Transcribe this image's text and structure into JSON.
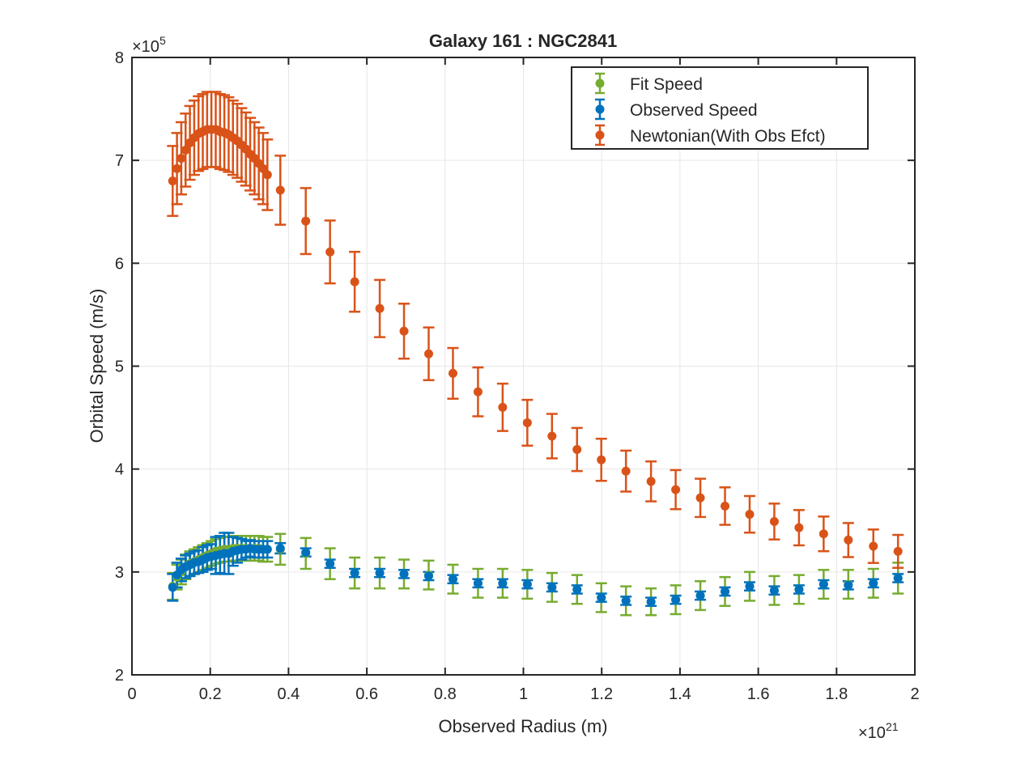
{
  "chart_data": {
    "type": "scatter",
    "title": "Galaxy 161 : NGC2841",
    "xlabel": "Observed Radius (m)",
    "ylabel": "Orbital Speed (m/s)",
    "x_exponent_label": "×10",
    "x_exponent": "21",
    "y_exponent_label": "×10",
    "y_exponent": "5",
    "xlim": [
      0,
      2
    ],
    "ylim": [
      2,
      8
    ],
    "xticks": [
      "0",
      "0.2",
      "0.4",
      "0.6",
      "0.8",
      "1",
      "1.2",
      "1.4",
      "1.6",
      "1.8",
      "2"
    ],
    "yticks": [
      "2",
      "3",
      "4",
      "5",
      "6",
      "7",
      "8"
    ],
    "grid": true,
    "legend_position": "top-right",
    "series": [
      {
        "name": "Fit Speed",
        "color": "#77AC30",
        "x": [
          0.104,
          0.115,
          0.126,
          0.137,
          0.148,
          0.159,
          0.17,
          0.181,
          0.192,
          0.203,
          0.214,
          0.225,
          0.236,
          0.247,
          0.258,
          0.269,
          0.28,
          0.291,
          0.302,
          0.313,
          0.324,
          0.335,
          0.346,
          0.379,
          0.444,
          0.506,
          0.569,
          0.633,
          0.695,
          0.758,
          0.82,
          0.884,
          0.947,
          1.01,
          1.073,
          1.137,
          1.199,
          1.262,
          1.326,
          1.389,
          1.452,
          1.515,
          1.578,
          1.641,
          1.704,
          1.767,
          1.83,
          1.894,
          1.957
        ],
        "y": [
          2.86,
          2.95,
          3.0,
          3.05,
          3.08,
          3.1,
          3.12,
          3.14,
          3.16,
          3.18,
          3.2,
          3.21,
          3.22,
          3.22,
          3.23,
          3.23,
          3.23,
          3.23,
          3.23,
          3.23,
          3.23,
          3.22,
          3.22,
          3.22,
          3.18,
          3.08,
          2.99,
          2.99,
          2.98,
          2.97,
          2.93,
          2.89,
          2.89,
          2.88,
          2.85,
          2.83,
          2.75,
          2.72,
          2.71,
          2.73,
          2.77,
          2.81,
          2.86,
          2.82,
          2.83,
          2.88,
          2.88,
          2.89,
          2.94
        ],
        "err": [
          0.13,
          0.12,
          0.12,
          0.12,
          0.12,
          0.12,
          0.12,
          0.12,
          0.12,
          0.12,
          0.12,
          0.12,
          0.12,
          0.12,
          0.12,
          0.12,
          0.12,
          0.12,
          0.12,
          0.12,
          0.12,
          0.12,
          0.12,
          0.15,
          0.15,
          0.15,
          0.15,
          0.15,
          0.14,
          0.14,
          0.14,
          0.14,
          0.14,
          0.14,
          0.14,
          0.14,
          0.14,
          0.14,
          0.13,
          0.14,
          0.14,
          0.14,
          0.14,
          0.14,
          0.14,
          0.14,
          0.14,
          0.14,
          0.15
        ]
      },
      {
        "name": "Observed Speed",
        "color": "#0072BD",
        "x": [
          0.104,
          0.115,
          0.126,
          0.137,
          0.148,
          0.159,
          0.17,
          0.181,
          0.192,
          0.203,
          0.214,
          0.225,
          0.236,
          0.247,
          0.258,
          0.269,
          0.28,
          0.291,
          0.302,
          0.313,
          0.324,
          0.335,
          0.346,
          0.379,
          0.444,
          0.506,
          0.569,
          0.633,
          0.695,
          0.758,
          0.82,
          0.884,
          0.947,
          1.01,
          1.073,
          1.137,
          1.199,
          1.262,
          1.326,
          1.389,
          1.452,
          1.515,
          1.578,
          1.641,
          1.704,
          1.767,
          1.83,
          1.894,
          1.957
        ],
        "y": [
          2.85,
          2.97,
          3.02,
          3.05,
          3.07,
          3.09,
          3.1,
          3.12,
          3.14,
          3.15,
          3.16,
          3.17,
          3.18,
          3.18,
          3.2,
          3.21,
          3.22,
          3.22,
          3.23,
          3.22,
          3.22,
          3.22,
          3.22,
          3.23,
          3.19,
          3.08,
          2.99,
          2.99,
          2.98,
          2.96,
          2.93,
          2.89,
          2.89,
          2.88,
          2.85,
          2.83,
          2.75,
          2.72,
          2.71,
          2.73,
          2.77,
          2.81,
          2.86,
          2.82,
          2.83,
          2.88,
          2.87,
          2.89,
          2.94
        ],
        "err": [
          0.13,
          0.12,
          0.11,
          0.11,
          0.11,
          0.11,
          0.11,
          0.12,
          0.12,
          0.12,
          0.18,
          0.18,
          0.2,
          0.2,
          0.14,
          0.12,
          0.1,
          0.08,
          0.08,
          0.08,
          0.08,
          0.08,
          0.08,
          0.05,
          0.04,
          0.04,
          0.04,
          0.04,
          0.04,
          0.04,
          0.04,
          0.04,
          0.04,
          0.04,
          0.04,
          0.04,
          0.04,
          0.04,
          0.04,
          0.04,
          0.04,
          0.04,
          0.04,
          0.04,
          0.04,
          0.04,
          0.04,
          0.04,
          0.04
        ]
      },
      {
        "name": "Newtonian(With Obs Efct)",
        "color": "#D95319",
        "x": [
          0.104,
          0.115,
          0.126,
          0.137,
          0.148,
          0.159,
          0.17,
          0.181,
          0.192,
          0.203,
          0.214,
          0.225,
          0.236,
          0.247,
          0.258,
          0.269,
          0.28,
          0.291,
          0.302,
          0.313,
          0.324,
          0.335,
          0.346,
          0.379,
          0.444,
          0.506,
          0.569,
          0.633,
          0.695,
          0.758,
          0.82,
          0.884,
          0.947,
          1.01,
          1.073,
          1.137,
          1.199,
          1.262,
          1.326,
          1.389,
          1.452,
          1.515,
          1.578,
          1.641,
          1.704,
          1.767,
          1.83,
          1.894,
          1.957
        ],
        "y": [
          6.8,
          6.92,
          7.02,
          7.1,
          7.17,
          7.22,
          7.26,
          7.28,
          7.3,
          7.3,
          7.3,
          7.28,
          7.27,
          7.25,
          7.22,
          7.19,
          7.15,
          7.11,
          7.06,
          7.02,
          6.97,
          6.92,
          6.86,
          6.71,
          6.41,
          6.11,
          5.82,
          5.56,
          5.34,
          5.12,
          4.93,
          4.75,
          4.6,
          4.45,
          4.32,
          4.19,
          4.09,
          3.98,
          3.88,
          3.8,
          3.72,
          3.64,
          3.56,
          3.49,
          3.43,
          3.37,
          3.31,
          3.25,
          3.2
        ]
      }
    ],
    "newtonian_err_frac": 0.05
  }
}
